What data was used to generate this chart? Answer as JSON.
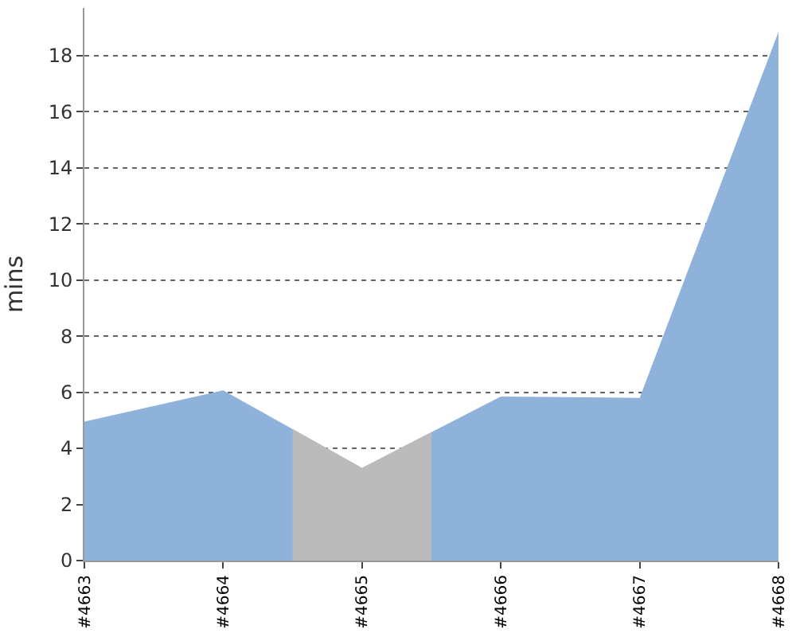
{
  "chart_data": {
    "type": "area",
    "ylabel": "mins",
    "x": [
      4663,
      4664,
      4665,
      4666,
      4667,
      4668
    ],
    "series": [
      {
        "color": "#8fb2db",
        "values": [
          4.95,
          6.07,
          3.3,
          5.85,
          5.8,
          18.85
        ]
      },
      {
        "color": "#bbbbbb",
        "x": [
          4664.5,
          4665,
          4665.5
        ],
        "values": [
          4.69,
          3.3,
          4.58
        ]
      }
    ],
    "xlim": [
      4663,
      4668
    ],
    "xticks": [
      {
        "value": 4663,
        "label": "#4663"
      },
      {
        "value": 4664,
        "label": "#4664"
      },
      {
        "value": 4665,
        "label": "#4665"
      },
      {
        "value": 4666,
        "label": "#4666"
      },
      {
        "value": 4667,
        "label": "#4667"
      },
      {
        "value": 4668,
        "label": "#4668"
      }
    ],
    "ylim": [
      0,
      19.7
    ],
    "yticks": [
      0,
      2,
      4,
      6,
      8,
      10,
      12,
      14,
      16,
      18
    ],
    "grid": "y",
    "legend": false
  }
}
